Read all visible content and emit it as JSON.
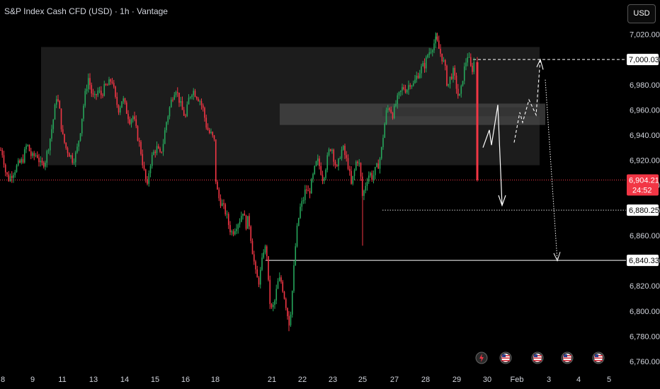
{
  "header": {
    "title": "S&P Index Cash CFD (USD) · 1h · Vantage",
    "currency_button": "USD"
  },
  "colors": {
    "background": "#000000",
    "up": "#26a65b",
    "down": "#f23645",
    "zone": "#3a3a3a",
    "text": "#d1d4dc"
  },
  "chart_data": {
    "type": "candlestick",
    "title": "S&P Index Cash CFD (USD) · 1h · Vantage",
    "ylim": [
      6756,
      7026
    ],
    "y_ticks": [
      7020,
      7000,
      6980,
      6960,
      6940,
      6920,
      6900,
      6880,
      6860,
      6840,
      6820,
      6800,
      6780,
      6760
    ],
    "y_tick_labels": [
      "7,020.00",
      "7,000.00",
      "6,980.00",
      "6,960.00",
      "6,940.00",
      "6,920.00",
      "6,900.00",
      "6,880.00",
      "6,860.00",
      "6,840.00",
      "6,820.00",
      "6,800.00",
      "6,780.00",
      "6,760.00"
    ],
    "x_tick_labels": [
      "8",
      "9",
      "11",
      "13",
      "14",
      "15",
      "16",
      "18",
      "21",
      "22",
      "23",
      "25",
      "27",
      "28",
      "29",
      "30",
      "Feb",
      "3",
      "4",
      "5"
    ],
    "price_path": [
      [
        1,
        6928
      ],
      [
        4,
        6925
      ],
      [
        8,
        6910
      ],
      [
        12,
        6905
      ],
      [
        18,
        6910
      ],
      [
        25,
        6916
      ],
      [
        32,
        6920
      ],
      [
        38,
        6933
      ],
      [
        45,
        6922
      ],
      [
        52,
        6925
      ],
      [
        58,
        6915
      ],
      [
        64,
        6920
      ],
      [
        70,
        6935
      ],
      [
        76,
        6955
      ],
      [
        80,
        6972
      ],
      [
        84,
        6960
      ],
      [
        88,
        6940
      ],
      [
        93,
        6930
      ],
      [
        98,
        6925
      ],
      [
        103,
        6920
      ],
      [
        108,
        6926
      ],
      [
        113,
        6942
      ],
      [
        117,
        6960
      ],
      [
        121,
        6975
      ],
      [
        125,
        6986
      ],
      [
        129,
        6974
      ],
      [
        133,
        6968
      ],
      [
        138,
        6975
      ],
      [
        143,
        6972
      ],
      [
        148,
        6978
      ],
      [
        153,
        6980
      ],
      [
        158,
        6985
      ],
      [
        163,
        6968
      ],
      [
        168,
        6960
      ],
      [
        173,
        6970
      ],
      [
        178,
        6960
      ],
      [
        183,
        6952
      ],
      [
        188,
        6955
      ],
      [
        193,
        6942
      ],
      [
        198,
        6930
      ],
      [
        203,
        6912
      ],
      [
        208,
        6898
      ],
      [
        211,
        6915
      ],
      [
        216,
        6925
      ],
      [
        221,
        6930
      ],
      [
        226,
        6924
      ],
      [
        230,
        6932
      ],
      [
        234,
        6948
      ],
      [
        238,
        6958
      ],
      [
        243,
        6970
      ],
      [
        248,
        6978
      ],
      [
        252,
        6970
      ],
      [
        257,
        6960
      ],
      [
        262,
        6954
      ],
      [
        267,
        6970
      ],
      [
        272,
        6976
      ],
      [
        277,
        6972
      ],
      [
        282,
        6968
      ],
      [
        287,
        6960
      ],
      [
        291,
        6948
      ],
      [
        295,
        6942
      ],
      [
        299,
        6940
      ],
      [
        303,
        6934
      ],
      [
        305,
        6900
      ],
      [
        309,
        6890
      ],
      [
        314,
        6884
      ],
      [
        319,
        6878
      ],
      [
        324,
        6866
      ],
      [
        328,
        6862
      ],
      [
        333,
        6868
      ],
      [
        338,
        6872
      ],
      [
        343,
        6880
      ],
      [
        347,
        6868
      ],
      [
        351,
        6874
      ],
      [
        356,
        6850
      ],
      [
        361,
        6830
      ],
      [
        365,
        6822
      ],
      [
        369,
        6835
      ],
      [
        373,
        6852
      ],
      [
        377,
        6845
      ],
      [
        380,
        6810
      ],
      [
        384,
        6800
      ],
      [
        388,
        6808
      ],
      [
        392,
        6822
      ],
      [
        396,
        6826
      ],
      [
        400,
        6816
      ],
      [
        404,
        6804
      ],
      [
        408,
        6790
      ],
      [
        411,
        6802
      ],
      [
        414,
        6826
      ],
      [
        417,
        6850
      ],
      [
        420,
        6868
      ],
      [
        424,
        6882
      ],
      [
        428,
        6888
      ],
      [
        432,
        6898
      ],
      [
        436,
        6893
      ],
      [
        440,
        6902
      ],
      [
        444,
        6912
      ],
      [
        448,
        6920
      ],
      [
        452,
        6914
      ],
      [
        456,
        6905
      ],
      [
        460,
        6915
      ],
      [
        464,
        6926
      ],
      [
        468,
        6932
      ],
      [
        472,
        6920
      ],
      [
        476,
        6912
      ],
      [
        480,
        6924
      ],
      [
        484,
        6930
      ],
      [
        488,
        6922
      ],
      [
        492,
        6915
      ],
      [
        496,
        6900
      ],
      [
        500,
        6910
      ],
      [
        504,
        6922
      ],
      [
        508,
        6915
      ],
      [
        512,
        6890
      ],
      [
        515,
        6898
      ],
      [
        518,
        6905
      ],
      [
        522,
        6910
      ],
      [
        526,
        6906
      ],
      [
        530,
        6912
      ],
      [
        534,
        6916
      ],
      [
        538,
        6925
      ],
      [
        542,
        6944
      ],
      [
        546,
        6960
      ],
      [
        550,
        6962
      ],
      [
        555,
        6956
      ],
      [
        559,
        6965
      ],
      [
        564,
        6972
      ],
      [
        569,
        6978
      ],
      [
        574,
        6976
      ],
      [
        579,
        6982
      ],
      [
        584,
        6980
      ],
      [
        588,
        6986
      ],
      [
        592,
        6990
      ],
      [
        596,
        6994
      ],
      [
        600,
        6996
      ],
      [
        604,
        7004
      ],
      [
        608,
        7008
      ],
      [
        612,
        7012
      ],
      [
        616,
        7016
      ],
      [
        620,
        7008
      ],
      [
        624,
        7002
      ],
      [
        628,
        6995
      ],
      [
        632,
        6978
      ],
      [
        636,
        6986
      ],
      [
        640,
        6990
      ],
      [
        644,
        6980
      ],
      [
        648,
        6968
      ],
      [
        651,
        6975
      ],
      [
        654,
        6988
      ],
      [
        657,
        6996
      ],
      [
        660,
        7004
      ],
      [
        663,
        6998
      ],
      [
        666,
        6990
      ],
      [
        669,
        6998
      ],
      [
        672,
        6995
      ],
      [
        674,
        6904
      ]
    ],
    "zones": [
      {
        "from_price": 6916,
        "to_price": 7010
      },
      {
        "from_price": 6948,
        "to_price": 6965
      },
      {
        "from_price": 6955,
        "to_price": 6962
      }
    ],
    "levels": [
      {
        "price": 7000.03,
        "label": "7,000.03",
        "style": "dashed"
      },
      {
        "price": 6904.21,
        "label": "6,904.21",
        "style": "current",
        "countdown": "24:52"
      },
      {
        "price": 6880.25,
        "label": "6,880.25",
        "style": "dotted"
      },
      {
        "price": 6840.33,
        "label": "6,840.33",
        "style": "solid"
      }
    ],
    "projection_paths": {
      "solid": [
        [
          6930,
          6944,
          6932,
          6964,
          6884
        ]
      ],
      "dashed": [
        [
          6934,
          6958,
          6950,
          6968,
          6956,
          7000
        ]
      ],
      "dotted": [
        [
          6984,
          6840
        ]
      ]
    },
    "event_icons": [
      "lightning-icon",
      "us-flag-icon",
      "us-flag-icon",
      "us-flag-icon",
      "us-flag-icon"
    ]
  }
}
